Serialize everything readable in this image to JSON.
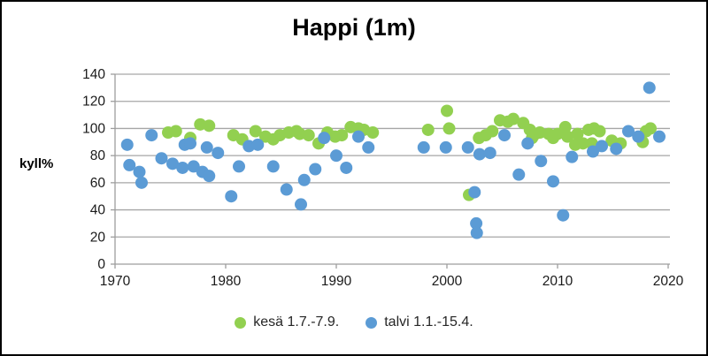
{
  "chart_data": {
    "type": "scatter",
    "title": "Happi (1m)",
    "ylabel": "kyll%",
    "xlim": [
      1970,
      2020
    ],
    "ylim": [
      0,
      140
    ],
    "xticks": [
      1970,
      1980,
      1990,
      2000,
      2010,
      2020
    ],
    "yticks": [
      0,
      20,
      40,
      60,
      80,
      100,
      120,
      140
    ],
    "grid": "horizontal-gridlines",
    "legend_position": "bottom",
    "axis_color": "#9d9d9d",
    "grid_color": "#a6a6a6",
    "tick_label_color": "#1a1a1a",
    "marker_radius": 7,
    "series": [
      {
        "name": "kesä 1.7.-7.9.",
        "color": "#92d050",
        "points": [
          [
            1974.8,
            97
          ],
          [
            1975.5,
            98
          ],
          [
            1976.8,
            93
          ],
          [
            1977.7,
            103
          ],
          [
            1978.5,
            102
          ],
          [
            1980.7,
            95
          ],
          [
            1981.5,
            92
          ],
          [
            1982.7,
            98
          ],
          [
            1983.6,
            94
          ],
          [
            1984.3,
            92
          ],
          [
            1984.9,
            95
          ],
          [
            1985.7,
            97
          ],
          [
            1986.4,
            98
          ],
          [
            1986.7,
            96
          ],
          [
            1987.5,
            95
          ],
          [
            1988.4,
            89
          ],
          [
            1989.2,
            97
          ],
          [
            1989.9,
            94
          ],
          [
            1990.5,
            95
          ],
          [
            1991.3,
            101
          ],
          [
            1992.0,
            100
          ],
          [
            1992.5,
            99
          ],
          [
            1993.3,
            97
          ],
          [
            1998.3,
            99
          ],
          [
            2000.0,
            113
          ],
          [
            2000.2,
            100
          ],
          [
            2002.0,
            51
          ],
          [
            2002.9,
            93
          ],
          [
            2003.5,
            95
          ],
          [
            2004.1,
            98
          ],
          [
            2004.8,
            106
          ],
          [
            2005.5,
            105
          ],
          [
            2006.0,
            107
          ],
          [
            2006.9,
            104
          ],
          [
            2007.5,
            99
          ],
          [
            2007.7,
            93
          ],
          [
            2008.0,
            96
          ],
          [
            2008.4,
            97
          ],
          [
            2009.2,
            96
          ],
          [
            2009.6,
            93
          ],
          [
            2010.0,
            96
          ],
          [
            2010.7,
            101
          ],
          [
            2010.9,
            94
          ],
          [
            2011.6,
            88
          ],
          [
            2011.8,
            96
          ],
          [
            2012.3,
            89
          ],
          [
            2012.8,
            99
          ],
          [
            2013.1,
            89
          ],
          [
            2013.3,
            100
          ],
          [
            2013.8,
            98
          ],
          [
            2014.9,
            91
          ],
          [
            2015.7,
            89
          ],
          [
            2017.7,
            90
          ],
          [
            2018.0,
            98
          ],
          [
            2018.4,
            100
          ]
        ]
      },
      {
        "name": "talvi 1.1.-15.4.",
        "color": "#5b9bd5",
        "points": [
          [
            1971.1,
            88
          ],
          [
            1971.3,
            73
          ],
          [
            1972.2,
            68
          ],
          [
            1972.4,
            60
          ],
          [
            1973.3,
            95
          ],
          [
            1974.2,
            78
          ],
          [
            1975.2,
            74
          ],
          [
            1976.1,
            71
          ],
          [
            1976.3,
            88
          ],
          [
            1976.8,
            89
          ],
          [
            1977.1,
            72
          ],
          [
            1977.9,
            68
          ],
          [
            1978.3,
            86
          ],
          [
            1978.5,
            65
          ],
          [
            1979.3,
            82
          ],
          [
            1980.5,
            50
          ],
          [
            1981.2,
            72
          ],
          [
            1982.1,
            87
          ],
          [
            1982.9,
            88
          ],
          [
            1984.3,
            72
          ],
          [
            1985.5,
            55
          ],
          [
            1986.8,
            44
          ],
          [
            1987.1,
            62
          ],
          [
            1988.1,
            70
          ],
          [
            1988.9,
            93
          ],
          [
            1990.0,
            80
          ],
          [
            1990.9,
            71
          ],
          [
            1992.0,
            94
          ],
          [
            1992.9,
            86
          ],
          [
            1997.9,
            86
          ],
          [
            1999.9,
            86
          ],
          [
            2001.9,
            86
          ],
          [
            2002.5,
            53
          ],
          [
            2002.65,
            30
          ],
          [
            2002.7,
            23
          ],
          [
            2002.95,
            81
          ],
          [
            2003.9,
            82
          ],
          [
            2005.2,
            95
          ],
          [
            2006.5,
            66
          ],
          [
            2007.3,
            89
          ],
          [
            2008.5,
            76
          ],
          [
            2009.6,
            61
          ],
          [
            2010.5,
            36
          ],
          [
            2011.3,
            79
          ],
          [
            2013.2,
            83
          ],
          [
            2014.0,
            87
          ],
          [
            2015.3,
            85
          ],
          [
            2016.4,
            98
          ],
          [
            2017.3,
            94
          ],
          [
            2018.3,
            130
          ],
          [
            2019.2,
            94
          ]
        ]
      }
    ]
  }
}
